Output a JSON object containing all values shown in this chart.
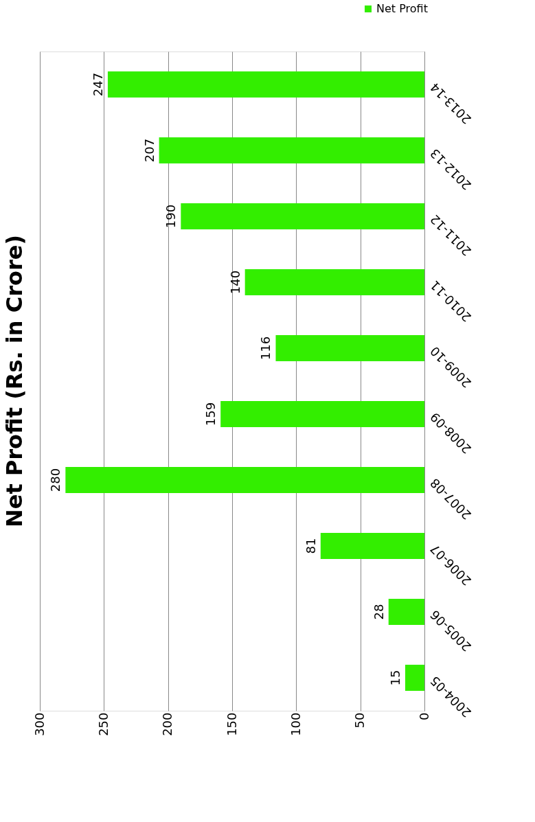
{
  "chart_data": {
    "type": "bar",
    "title": "Net Profit (Rs. in Crore)",
    "orientation": "horizontal",
    "categories": [
      "2013-14",
      "2012-13",
      "2011-12",
      "2010-11",
      "2009-10",
      "2008-09",
      "2007-08",
      "2006-07",
      "2005-06",
      "2004-05"
    ],
    "series": [
      {
        "name": "Net Profit",
        "color": "#33ee00",
        "values": [
          247,
          207,
          190,
          140,
          116,
          159,
          280,
          81,
          28,
          15
        ]
      }
    ],
    "xlim": [
      300,
      0
    ],
    "xticks": [
      0,
      50,
      100,
      150,
      200,
      250,
      300
    ],
    "grid": "x",
    "data_labels": true,
    "legend": "top right"
  }
}
